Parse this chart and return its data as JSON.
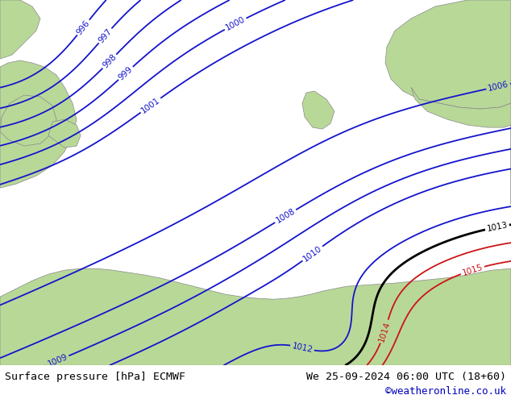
{
  "title_left": "Surface pressure [hPa] ECMWF",
  "title_right": "We 25-09-2024 06:00 UTC (18+60)",
  "credit": "©weatheronline.co.uk",
  "sea_color": "#d8d8e8",
  "land_color": "#b8d898",
  "coast_color": "#888888",
  "isobar_blue": "#1414cc",
  "isobar_black": "#000000",
  "isobar_red": "#cc1414",
  "label_fontsize": 7.5,
  "footer_fontsize": 9.5,
  "credit_fontsize": 9,
  "blue_levels": [
    996,
    997,
    998,
    999,
    1000,
    1001,
    1006,
    1008,
    1009,
    1010,
    1012
  ],
  "black_levels": [
    1013
  ],
  "red_levels": [
    1014,
    1015
  ],
  "figsize": [
    6.34,
    4.9
  ],
  "dpi": 100
}
